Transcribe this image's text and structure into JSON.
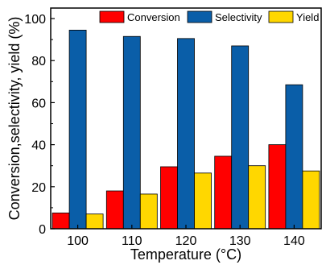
{
  "chart_data": {
    "type": "bar",
    "categories": [
      "100",
      "110",
      "120",
      "130",
      "140"
    ],
    "series": [
      {
        "name": "Conversion",
        "color": "#ff0000",
        "values": [
          7.5,
          18,
          29.5,
          34.5,
          40
        ]
      },
      {
        "name": "Selectivity",
        "color": "#0a5ea8",
        "values": [
          94.5,
          91.5,
          90.5,
          87,
          68.5
        ]
      },
      {
        "name": "Yield",
        "color": "#ffd700",
        "values": [
          7,
          16.5,
          26.5,
          30,
          27.5
        ]
      }
    ],
    "title": "",
    "xlabel": "Temperature (°C)",
    "ylabel": "Conversion,selectivity, yield (%)",
    "ylim": [
      0,
      105
    ],
    "yticks": [
      0,
      20,
      40,
      60,
      80,
      100
    ],
    "grid": false,
    "legend_position": "top"
  }
}
